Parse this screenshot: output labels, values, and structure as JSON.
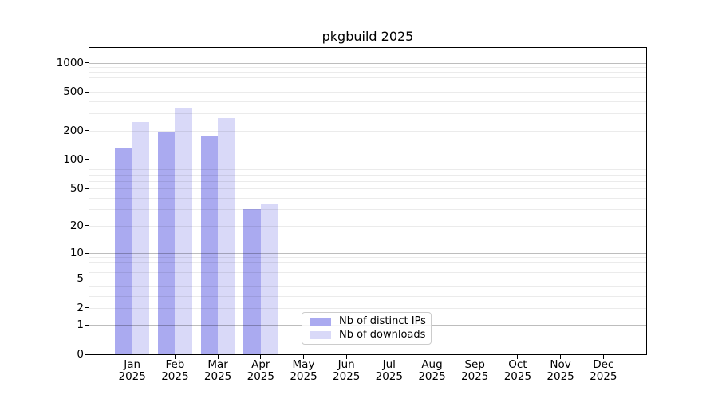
{
  "chart_data": {
    "type": "bar",
    "title": "pkgbuild 2025",
    "categories": [
      "Jan",
      "Feb",
      "Mar",
      "Apr",
      "May",
      "Jun",
      "Jul",
      "Aug",
      "Sep",
      "Oct",
      "Nov",
      "Dec"
    ],
    "xtick_year": "2025",
    "series": [
      {
        "name": "Nb of distinct IPs",
        "color": "#aaaaf0",
        "values": [
          130,
          193,
          172,
          30,
          null,
          null,
          null,
          null,
          null,
          null,
          null,
          null
        ]
      },
      {
        "name": "Nb of downloads",
        "color": "#d9d9f8",
        "values": [
          245,
          345,
          270,
          34,
          null,
          null,
          null,
          null,
          null,
          null,
          null,
          null
        ]
      }
    ],
    "xlabel": "",
    "ylabel": "",
    "yscale": "log1p",
    "ylim": [
      0,
      1420
    ],
    "yticks": [
      0,
      1,
      2,
      5,
      10,
      20,
      50,
      100,
      200,
      500,
      1000
    ],
    "ytick_labels": [
      "0",
      "1",
      "2",
      "5",
      "10",
      "20",
      "50",
      "100",
      "200",
      "500",
      "1000"
    ],
    "grid": true,
    "legend_position": "lower-center"
  }
}
